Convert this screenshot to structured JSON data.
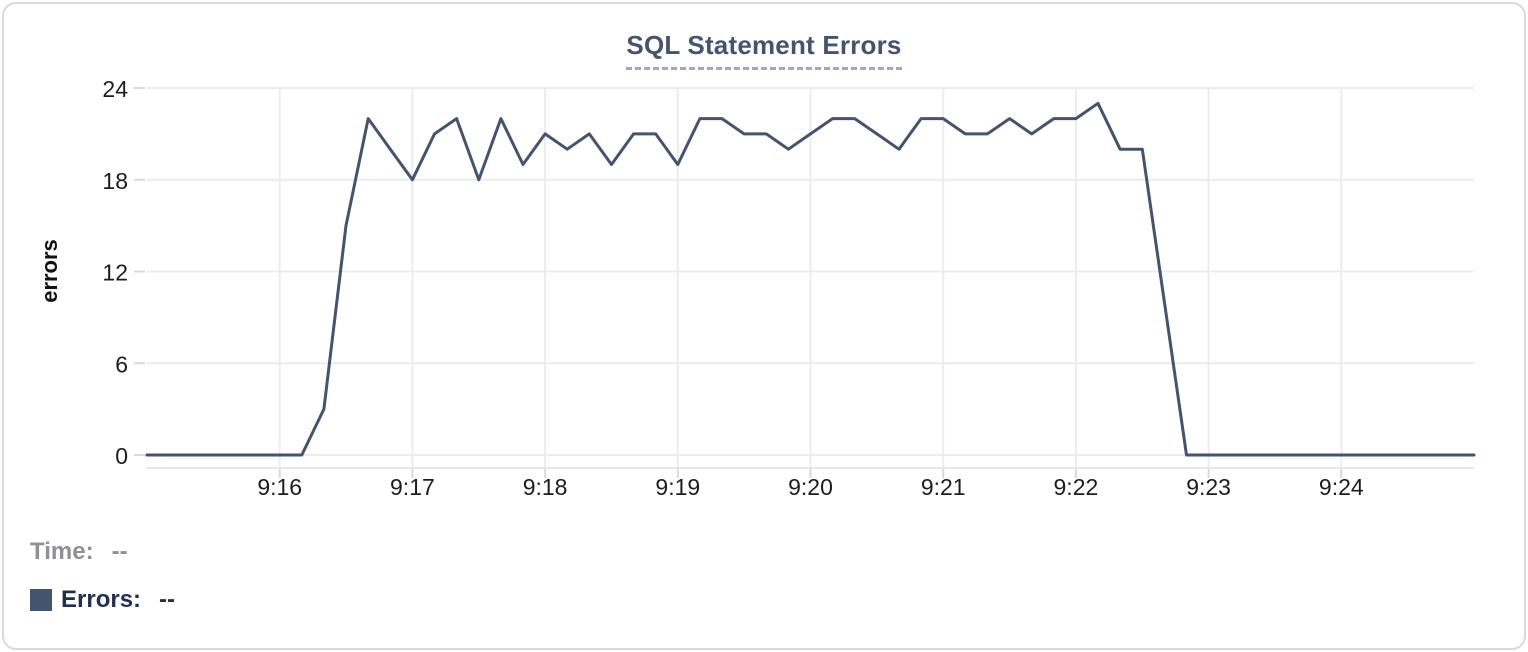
{
  "chart_data": {
    "type": "line",
    "title": "SQL Statement Errors",
    "xlabel": "",
    "ylabel": "errors",
    "ylim": [
      0,
      24
    ],
    "y_ticks": [
      0,
      6,
      12,
      18,
      24
    ],
    "x_ticks": [
      "9:16",
      "9:17",
      "9:18",
      "9:19",
      "9:20",
      "9:21",
      "9:22",
      "9:23",
      "9:24"
    ],
    "x_range": {
      "start": "9:15:00",
      "end": "9:25:00"
    },
    "grid": true,
    "legend_position": "bottom-left",
    "series": [
      {
        "name": "Errors",
        "color": "#44536e",
        "times": [
          "9:15:00",
          "9:15:10",
          "9:15:20",
          "9:15:30",
          "9:15:40",
          "9:15:50",
          "9:16:00",
          "9:16:10",
          "9:16:20",
          "9:16:30",
          "9:16:40",
          "9:16:50",
          "9:17:00",
          "9:17:10",
          "9:17:20",
          "9:17:30",
          "9:17:40",
          "9:17:50",
          "9:18:00",
          "9:18:10",
          "9:18:20",
          "9:18:30",
          "9:18:40",
          "9:18:50",
          "9:19:00",
          "9:19:10",
          "9:19:20",
          "9:19:30",
          "9:19:40",
          "9:19:50",
          "9:20:00",
          "9:20:10",
          "9:20:20",
          "9:20:30",
          "9:20:40",
          "9:20:50",
          "9:21:00",
          "9:21:10",
          "9:21:20",
          "9:21:30",
          "9:21:40",
          "9:21:50",
          "9:22:00",
          "9:22:10",
          "9:22:20",
          "9:22:30",
          "9:22:40",
          "9:22:50",
          "9:23:00",
          "9:23:10",
          "9:23:20",
          "9:23:30",
          "9:23:40",
          "9:23:50",
          "9:24:00",
          "9:24:10",
          "9:24:20",
          "9:24:30",
          "9:24:40",
          "9:24:50",
          "9:25:00"
        ],
        "values": [
          0,
          0,
          0,
          0,
          0,
          0,
          0,
          0,
          3,
          15,
          22,
          20,
          18,
          21,
          22,
          18,
          22,
          19,
          21,
          20,
          21,
          19,
          21,
          21,
          19,
          22,
          22,
          21,
          21,
          20,
          21,
          22,
          22,
          21,
          20,
          22,
          22,
          21,
          21,
          22,
          21,
          22,
          22,
          23,
          20,
          20,
          10,
          0,
          0,
          0,
          0,
          0,
          0,
          0,
          0,
          0,
          0,
          0,
          0,
          0,
          0
        ]
      }
    ]
  },
  "readout": {
    "time_label": "Time:",
    "time_value": "--",
    "errors_label": "Errors:",
    "errors_value": "--",
    "swatch_color": "#44536e"
  },
  "colors": {
    "line": "#44536e",
    "title_text": "#44546f",
    "title_underline": "#9aa9c4",
    "grid": "#ececec",
    "axis_text": "#1d1d1f",
    "time_text": "#8e9096",
    "errors_text": "#22304e",
    "card_border": "#d9d9d9"
  }
}
